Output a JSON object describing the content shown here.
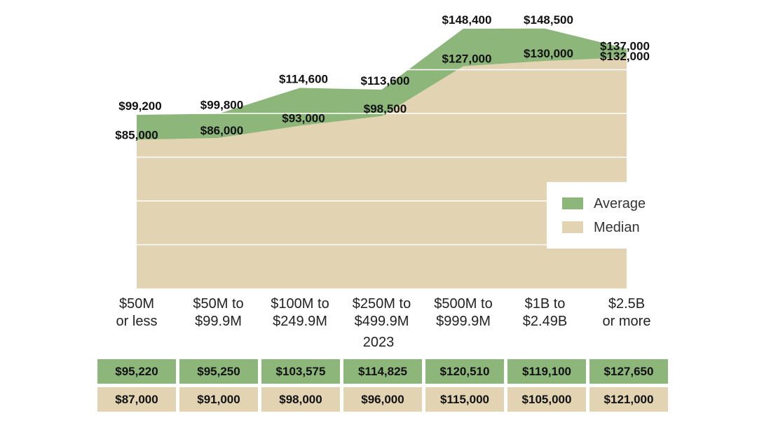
{
  "chart_data": {
    "type": "area",
    "categories": [
      [
        "$50M",
        "or less"
      ],
      [
        "$50M to",
        "$99.9M"
      ],
      [
        "$100M to",
        "$249.9M"
      ],
      [
        "$250M to",
        "$499.9M"
      ],
      [
        "$500M to",
        "$999.9M"
      ],
      [
        "$1B to",
        "$2.49B"
      ],
      [
        "$2.5B",
        "or more"
      ]
    ],
    "series": [
      {
        "name": "Average",
        "color": "#8db77a",
        "values": [
          99200,
          99800,
          114600,
          113600,
          148400,
          148500,
          137000
        ],
        "labels": [
          "$99,200",
          "$99,800",
          "$114,600",
          "$113,600",
          "$148,400",
          "$148,500",
          "$137,000"
        ]
      },
      {
        "name": "Median",
        "color": "#e2d3b2",
        "values": [
          85000,
          86000,
          93000,
          98500,
          127000,
          130000,
          132000
        ],
        "labels": [
          "$85,000",
          "$86,000",
          "$93,000",
          "$98,500",
          "$127,000",
          "$130,000",
          "$132,000"
        ]
      }
    ],
    "xlabel": "2023",
    "ylim": [
      0,
      154000
    ],
    "grid": true,
    "legend": "right",
    "table": {
      "average_row": [
        "$95,220",
        "$95,250",
        "$103,575",
        "$114,825",
        "$120,510",
        "$119,100",
        "$127,650"
      ],
      "median_row": [
        "$87,000",
        "$91,000",
        "$98,000",
        "$96,000",
        "$115,000",
        "$105,000",
        "$121,000"
      ],
      "average_color": "#8db77a",
      "median_color": "#e2d3b2"
    }
  }
}
